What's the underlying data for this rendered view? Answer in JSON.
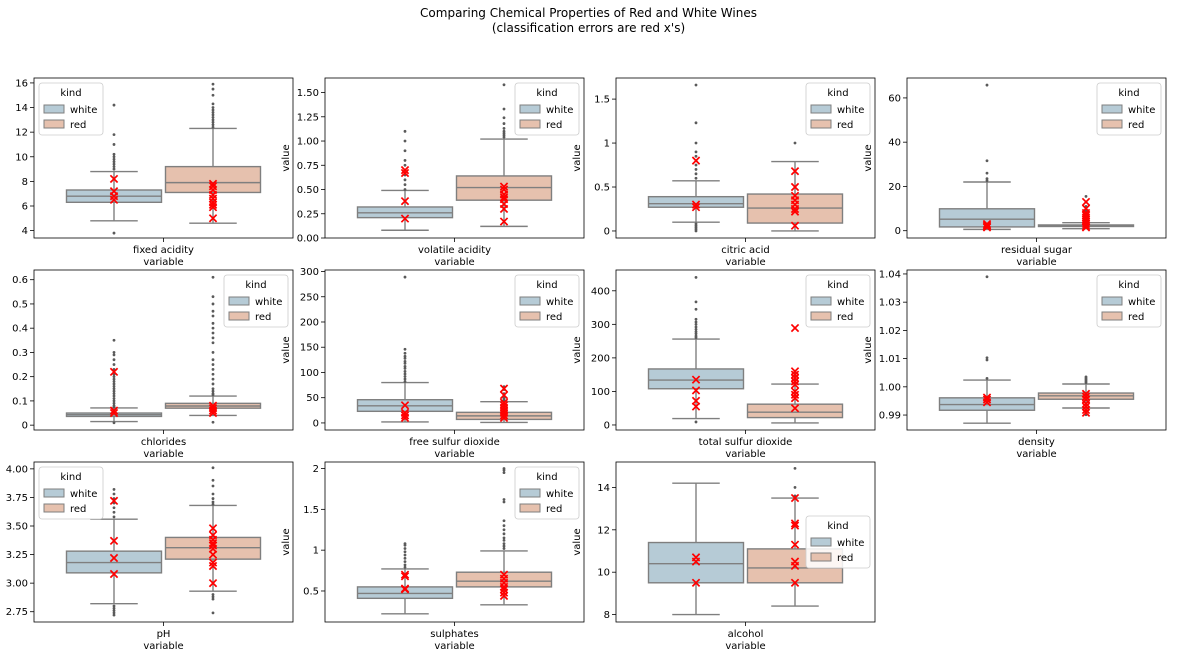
{
  "figure": {
    "title_line1": "Comparing Chemical Properties of Red and White Wines",
    "title_line2": "(classification errors are red x's)"
  },
  "chart_data": [
    {
      "type": "box",
      "title": "",
      "xlabel": "variable",
      "ylabel": "value",
      "category": "fixed acidity",
      "ylim": [
        3.4,
        16.4
      ],
      "yticks": [
        4,
        6,
        8,
        10,
        12,
        14,
        16
      ],
      "legend_title": "kind",
      "legend_position": "upper left",
      "series": [
        {
          "name": "white",
          "color": "#b6cbd6",
          "q1": 6.3,
          "median": 6.8,
          "q3": 7.3,
          "whisker_low": 4.8,
          "whisker_high": 8.8,
          "outliers": [
            3.8,
            9.0,
            9.2,
            9.4,
            9.6,
            9.8,
            10.0,
            10.2,
            11.0,
            11.8,
            14.2
          ],
          "errors": [
            6.5,
            6.8,
            7.2,
            8.2
          ]
        },
        {
          "name": "red",
          "color": "#e6c1ae",
          "q1": 7.1,
          "median": 7.9,
          "q3": 9.2,
          "whisker_low": 4.6,
          "whisker_high": 12.3,
          "outliers": [
            12.4,
            12.6,
            12.8,
            13.0,
            13.2,
            13.4,
            13.6,
            13.8,
            14.0,
            14.3,
            15.0,
            15.5,
            15.9
          ],
          "errors": [
            5.0,
            5.9,
            6.1,
            6.3,
            6.6,
            6.9,
            7.3,
            7.6,
            7.8
          ]
        }
      ]
    },
    {
      "type": "box",
      "title": "",
      "xlabel": "variable",
      "ylabel": "value",
      "category": "volatile acidity",
      "ylim": [
        0,
        1.65
      ],
      "yticks": [
        0.0,
        0.25,
        0.5,
        0.75,
        1.0,
        1.25,
        1.5
      ],
      "yticklabels": [
        "0.00",
        "0.25",
        "0.50",
        "0.75",
        "1.00",
        "1.25",
        "1.50"
      ],
      "legend_title": "kind",
      "legend_position": "upper right",
      "series": [
        {
          "name": "white",
          "color": "#b6cbd6",
          "q1": 0.21,
          "median": 0.26,
          "q3": 0.32,
          "whisker_low": 0.08,
          "whisker_high": 0.49,
          "outliers": [
            0.5,
            0.55,
            0.6,
            0.65,
            0.7,
            0.75,
            0.8,
            0.9,
            1.0,
            1.1
          ],
          "errors": [
            0.2,
            0.38,
            0.67,
            0.7
          ]
        },
        {
          "name": "red",
          "color": "#e6c1ae",
          "q1": 0.39,
          "median": 0.52,
          "q3": 0.64,
          "whisker_low": 0.12,
          "whisker_high": 1.02,
          "outliers": [
            1.04,
            1.06,
            1.08,
            1.1,
            1.13,
            1.18,
            1.24,
            1.33,
            1.58
          ],
          "errors": [
            0.17,
            0.3,
            0.35,
            0.4,
            0.42,
            0.45,
            0.5,
            0.53
          ]
        }
      ]
    },
    {
      "type": "box",
      "title": "",
      "xlabel": "variable",
      "ylabel": "value",
      "category": "citric acid",
      "ylim": [
        -0.08,
        1.74
      ],
      "yticks": [
        0.0,
        0.5,
        1.0,
        1.5
      ],
      "legend_title": "kind",
      "legend_position": "upper right",
      "series": [
        {
          "name": "white",
          "color": "#b6cbd6",
          "q1": 0.27,
          "median": 0.31,
          "q3": 0.39,
          "whisker_low": 0.1,
          "whisker_high": 0.57,
          "outliers": [
            0.0,
            0.02,
            0.04,
            0.06,
            0.08,
            0.6,
            0.65,
            0.7,
            0.75,
            0.8,
            0.85,
            0.9,
            1.0,
            1.23,
            1.66
          ],
          "errors": [
            0.27,
            0.3,
            0.8
          ]
        },
        {
          "name": "red",
          "color": "#e6c1ae",
          "q1": 0.09,
          "median": 0.26,
          "q3": 0.42,
          "whisker_low": 0.0,
          "whisker_high": 0.79,
          "outliers": [
            1.0
          ],
          "errors": [
            0.06,
            0.22,
            0.25,
            0.3,
            0.35,
            0.4,
            0.5,
            0.68
          ]
        }
      ]
    },
    {
      "type": "box",
      "title": "",
      "xlabel": "variable",
      "ylabel": "value",
      "category": "residual sugar",
      "ylim": [
        -3.3,
        69
      ],
      "yticks": [
        0,
        20,
        40,
        60
      ],
      "legend_title": "kind",
      "legend_position": "upper right",
      "series": [
        {
          "name": "white",
          "color": "#b6cbd6",
          "q1": 1.7,
          "median": 5.2,
          "q3": 9.9,
          "whisker_low": 0.6,
          "whisker_high": 22.0,
          "outliers": [
            22.6,
            23.5,
            26.0,
            31.6,
            65.8
          ],
          "errors": [
            1.5,
            2.0,
            2.5,
            3.0
          ]
        },
        {
          "name": "red",
          "color": "#e6c1ae",
          "q1": 1.9,
          "median": 2.2,
          "q3": 2.6,
          "whisker_low": 0.9,
          "whisker_high": 3.6,
          "outliers": [
            3.8,
            4.5,
            5.5,
            6.5,
            8.0,
            9.0,
            10.0,
            11.0,
            13.0,
            15.5
          ],
          "errors": [
            1.5,
            2.0,
            3.0,
            4.0,
            5.0,
            6.0,
            7.0,
            8.0,
            10.0,
            13.0
          ]
        }
      ]
    },
    {
      "type": "box",
      "title": "",
      "xlabel": "variable",
      "ylabel": "value",
      "category": "chlorides",
      "ylim": [
        -0.02,
        0.64
      ],
      "yticks": [
        0.0,
        0.1,
        0.2,
        0.3,
        0.4,
        0.5,
        0.6
      ],
      "legend_title": "kind",
      "legend_position": "upper right",
      "series": [
        {
          "name": "white",
          "color": "#b6cbd6",
          "q1": 0.036,
          "median": 0.043,
          "q3": 0.05,
          "whisker_low": 0.015,
          "whisker_high": 0.071,
          "outliers": [
            0.01,
            0.075,
            0.08,
            0.09,
            0.1,
            0.11,
            0.12,
            0.13,
            0.14,
            0.15,
            0.16,
            0.17,
            0.18,
            0.19,
            0.2,
            0.21,
            0.23,
            0.25,
            0.27,
            0.29,
            0.3,
            0.35
          ],
          "errors": [
            0.05,
            0.06,
            0.22
          ]
        },
        {
          "name": "red",
          "color": "#e6c1ae",
          "q1": 0.07,
          "median": 0.079,
          "q3": 0.09,
          "whisker_low": 0.04,
          "whisker_high": 0.12,
          "outliers": [
            0.012,
            0.125,
            0.13,
            0.14,
            0.15,
            0.17,
            0.19,
            0.21,
            0.23,
            0.25,
            0.27,
            0.3,
            0.34,
            0.36,
            0.38,
            0.4,
            0.42,
            0.45,
            0.47,
            0.5,
            0.53,
            0.61
          ],
          "errors": [
            0.05,
            0.06,
            0.07,
            0.08
          ]
        }
      ]
    },
    {
      "type": "box",
      "title": "",
      "xlabel": "variable",
      "ylabel": "value",
      "category": "free sulfur dioxide",
      "ylim": [
        -14,
        303
      ],
      "yticks": [
        0,
        50,
        100,
        150,
        200,
        250,
        300
      ],
      "legend_title": "kind",
      "legend_position": "upper right",
      "series": [
        {
          "name": "white",
          "color": "#b6cbd6",
          "q1": 23,
          "median": 34,
          "q3": 46,
          "whisker_low": 2,
          "whisker_high": 80,
          "outliers": [
            82,
            87,
            92,
            97,
            102,
            108,
            112,
            118,
            122,
            128,
            132,
            138,
            146,
            289
          ],
          "errors": [
            10,
            15,
            20,
            35
          ]
        },
        {
          "name": "red",
          "color": "#e6c1ae",
          "q1": 7,
          "median": 14,
          "q3": 21,
          "whisker_low": 1,
          "whisker_high": 42,
          "outliers": [
            43,
            45,
            48,
            51,
            55,
            58,
            66,
            68,
            72
          ],
          "errors": [
            10,
            15,
            20,
            25,
            30,
            35,
            40,
            55,
            68
          ]
        }
      ]
    },
    {
      "type": "box",
      "title": "",
      "xlabel": "variable",
      "ylabel": "value",
      "category": "total sulfur dioxide",
      "ylim": [
        -15,
        462
      ],
      "yticks": [
        0,
        100,
        200,
        300,
        400
      ],
      "legend_title": "kind",
      "legend_position": "upper right",
      "series": [
        {
          "name": "white",
          "color": "#b6cbd6",
          "q1": 108,
          "median": 134,
          "q3": 167,
          "whisker_low": 19,
          "whisker_high": 256,
          "outliers": [
            9,
            260,
            265,
            272,
            278,
            285,
            292,
            300,
            307,
            315,
            345,
            367,
            440
          ],
          "errors": [
            55,
            72,
            103,
            135
          ]
        },
        {
          "name": "red",
          "color": "#e6c1ae",
          "q1": 22,
          "median": 38,
          "q3": 62,
          "whisker_low": 6,
          "whisker_high": 122,
          "outliers": [
            124,
            127,
            131,
            135,
            140,
            145,
            148,
            151,
            155,
            160
          ],
          "errors": [
            50,
            80,
            90,
            100,
            120,
            130,
            140,
            150,
            160,
            289
          ]
        }
      ]
    },
    {
      "type": "box",
      "title": "",
      "xlabel": "variable",
      "ylabel": "value",
      "category": "density",
      "ylim": [
        0.9847,
        1.0414
      ],
      "yticks": [
        0.99,
        1.0,
        1.01,
        1.02,
        1.03,
        1.04
      ],
      "yticklabels": [
        "0.99",
        "1.00",
        "1.01",
        "1.02",
        "1.03",
        "1.04"
      ],
      "legend_title": "kind",
      "legend_position": "upper right",
      "series": [
        {
          "name": "white",
          "color": "#b6cbd6",
          "q1": 0.9917,
          "median": 0.9937,
          "q3": 0.9961,
          "whisker_low": 0.9871,
          "whisker_high": 1.0024,
          "outliers": [
            1.003,
            1.0095,
            1.0103,
            1.039
          ],
          "errors": [
            0.9945,
            0.9955,
            0.9962
          ]
        },
        {
          "name": "red",
          "color": "#e6c1ae",
          "q1": 0.9956,
          "median": 0.9968,
          "q3": 0.9978,
          "whisker_low": 0.9925,
          "whisker_high": 1.001,
          "outliers": [
            0.9901,
            0.9907,
            0.9912,
            0.9918,
            1.0015,
            1.002,
            1.0025,
            1.003,
            1.0035
          ],
          "errors": [
            0.9908,
            0.9918,
            0.993,
            0.994,
            0.9955,
            0.9965,
            0.9975
          ]
        }
      ]
    },
    {
      "type": "box",
      "title": "",
      "xlabel": "variable",
      "ylabel": "value",
      "category": "pH",
      "ylim": [
        2.66,
        4.06
      ],
      "yticks": [
        2.75,
        3.0,
        3.25,
        3.5,
        3.75,
        4.0
      ],
      "yticklabels": [
        "2.75",
        "3.00",
        "3.25",
        "3.50",
        "3.75",
        "4.00"
      ],
      "legend_title": "kind",
      "legend_position": "upper left",
      "series": [
        {
          "name": "white",
          "color": "#b6cbd6",
          "q1": 3.09,
          "median": 3.18,
          "q3": 3.28,
          "whisker_low": 2.82,
          "whisker_high": 3.56,
          "outliers": [
            2.72,
            2.74,
            2.76,
            2.78,
            2.8,
            3.58,
            3.62,
            3.66,
            3.7,
            3.74,
            3.78,
            3.82
          ],
          "errors": [
            3.08,
            3.22,
            3.37,
            3.72
          ]
        },
        {
          "name": "red",
          "color": "#e6c1ae",
          "q1": 3.21,
          "median": 3.31,
          "q3": 3.4,
          "whisker_low": 2.93,
          "whisker_high": 3.68,
          "outliers": [
            2.74,
            2.86,
            2.88,
            2.9,
            3.69,
            3.71,
            3.74,
            3.78,
            3.85,
            3.9,
            4.01
          ],
          "errors": [
            3.0,
            3.15,
            3.18,
            3.25,
            3.3,
            3.33,
            3.35,
            3.38,
            3.42,
            3.48
          ]
        }
      ]
    },
    {
      "type": "box",
      "title": "",
      "xlabel": "variable",
      "ylabel": "value",
      "category": "sulphates",
      "ylim": [
        0.12,
        2.08
      ],
      "yticks": [
        0.5,
        1.0,
        1.5,
        2.0
      ],
      "legend_title": "kind",
      "legend_position": "upper right",
      "series": [
        {
          "name": "white",
          "color": "#b6cbd6",
          "q1": 0.41,
          "median": 0.47,
          "q3": 0.55,
          "whisker_low": 0.22,
          "whisker_high": 0.77,
          "outliers": [
            0.79,
            0.82,
            0.86,
            0.9,
            0.94,
            0.98,
            1.02,
            1.06,
            1.08
          ],
          "errors": [
            0.52,
            0.53,
            0.68,
            0.7
          ]
        },
        {
          "name": "red",
          "color": "#e6c1ae",
          "q1": 0.55,
          "median": 0.62,
          "q3": 0.73,
          "whisker_low": 0.33,
          "whisker_high": 0.99,
          "outliers": [
            1.02,
            1.05,
            1.08,
            1.12,
            1.15,
            1.2,
            1.25,
            1.3,
            1.36,
            1.59,
            1.62,
            1.95,
            1.98,
            2.0
          ],
          "errors": [
            0.44,
            0.48,
            0.52,
            0.55,
            0.6,
            0.65,
            0.7
          ]
        }
      ]
    },
    {
      "type": "box",
      "title": "",
      "xlabel": "variable",
      "ylabel": "value",
      "category": "alcohol",
      "ylim": [
        7.65,
        15.2
      ],
      "yticks": [
        8,
        10,
        12,
        14
      ],
      "legend_title": "kind",
      "legend_position": "center right",
      "series": [
        {
          "name": "white",
          "color": "#b6cbd6",
          "q1": 9.5,
          "median": 10.4,
          "q3": 11.4,
          "whisker_low": 8.0,
          "whisker_high": 14.2,
          "outliers": [],
          "errors": [
            9.5,
            10.5,
            10.7
          ]
        },
        {
          "name": "red",
          "color": "#e6c1ae",
          "q1": 9.5,
          "median": 10.2,
          "q3": 11.1,
          "whisker_low": 8.4,
          "whisker_high": 13.5,
          "outliers": [
            13.6,
            14.0,
            14.9
          ],
          "errors": [
            9.5,
            10.3,
            10.5,
            11.3,
            12.2,
            12.3,
            13.5
          ]
        }
      ]
    }
  ]
}
